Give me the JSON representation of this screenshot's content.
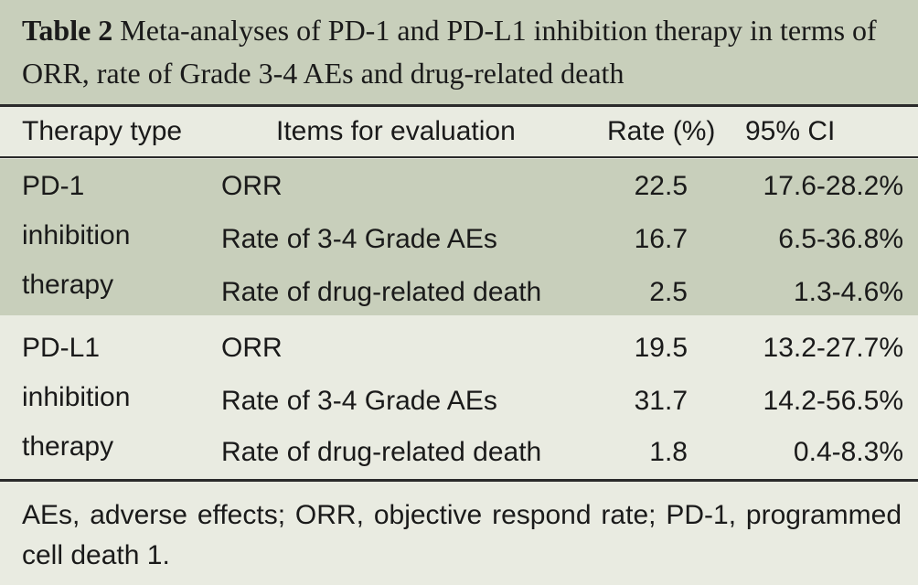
{
  "caption": {
    "label": "Table 2",
    "text": "Meta-analyses of PD-1 and PD-L1 inhibition therapy in terms of ORR, rate of Grade 3-4 AEs and drug-related death"
  },
  "header": {
    "therapy_type": "Therapy type",
    "items": "Items for evaluation",
    "rate": "Rate (%)",
    "ci": "95% CI"
  },
  "groups": [
    {
      "therapy_lines": [
        "PD-1",
        "inhibition",
        "therapy"
      ],
      "rows": [
        {
          "item": "ORR",
          "rate": "22.5",
          "ci": "17.6-28.2%"
        },
        {
          "item": "Rate of 3-4 Grade AEs",
          "rate": "16.7",
          "ci": "6.5-36.8%"
        },
        {
          "item": "Rate of drug-related death",
          "rate": "2.5",
          "ci": "1.3-4.6%"
        }
      ]
    },
    {
      "therapy_lines": [
        "PD-L1",
        "inhibition",
        "therapy"
      ],
      "rows": [
        {
          "item": "ORR",
          "rate": "19.5",
          "ci": "13.2-27.7%"
        },
        {
          "item": "Rate of 3-4 Grade AEs",
          "rate": "31.7",
          "ci": "14.2-56.5%"
        },
        {
          "item": "Rate of drug-related death",
          "rate": "1.8",
          "ci": "0.4-8.3%"
        }
      ]
    }
  ],
  "footnote": "AEs, adverse effects; ORR, objective respond rate; PD-1, programmed cell death 1.",
  "colors": {
    "band_dark": "#c8cfbb",
    "band_light": "#e9ebe1",
    "rule": "#2a2a2a"
  }
}
